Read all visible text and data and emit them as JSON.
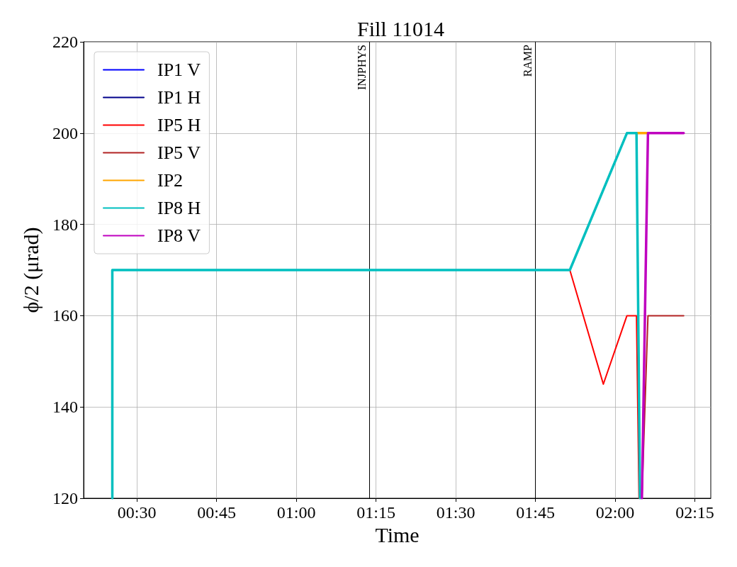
{
  "chart_data": {
    "type": "line",
    "title": "Fill 11014",
    "xlabel": "Time",
    "ylabel": "ϕ/2 (μrad)",
    "xlim": [
      0.333,
      2.3
    ],
    "xticks": [
      {
        "value": 0.5,
        "label": "00:30"
      },
      {
        "value": 0.75,
        "label": "00:45"
      },
      {
        "value": 1.0,
        "label": "01:00"
      },
      {
        "value": 1.25,
        "label": "01:15"
      },
      {
        "value": 1.5,
        "label": "01:30"
      },
      {
        "value": 1.75,
        "label": "01:45"
      },
      {
        "value": 2.0,
        "label": "02:00"
      },
      {
        "value": 2.25,
        "label": "02:15"
      }
    ],
    "ylim": [
      120,
      220
    ],
    "yticks": [
      120,
      140,
      160,
      180,
      200,
      220
    ],
    "grid": true,
    "legend": "top left",
    "marker": "none",
    "line_style": "solid",
    "ref_lines": [
      {
        "axis": "x",
        "value": 1.23,
        "label": "INJPHYS",
        "color": "#000000"
      },
      {
        "axis": "x",
        "value": 1.752,
        "label": "RAMP",
        "color": "#000000"
      }
    ],
    "series": [
      {
        "name": "IP1 V",
        "color": "#0000ff"
      },
      {
        "name": "IP1 H",
        "color": "#00008b"
      },
      {
        "name": "IP5 H",
        "color": "#ff0000",
        "x": [
          1.858,
          1.963,
          2.037,
          2.067,
          2.075
        ],
        "values": [
          170,
          145,
          160,
          160,
          120
        ]
      },
      {
        "name": "IP5 V",
        "color": "#b22222",
        "x": [
          2.084,
          2.103,
          2.215
        ],
        "values": [
          120,
          160,
          160
        ]
      },
      {
        "name": "IP2",
        "color": "#ffa500",
        "x": [
          2.067,
          2.103
        ],
        "values": [
          200,
          200
        ]
      },
      {
        "name": "IP8 H",
        "color": "#00bfbf",
        "x": [
          0.423,
          0.423,
          1.858,
          2.037,
          2.067,
          2.078
        ],
        "values": [
          120,
          170,
          170,
          200,
          200,
          120
        ]
      },
      {
        "name": "IP8 V",
        "color": "#bf00bf",
        "x": [
          2.084,
          2.103,
          2.215
        ],
        "values": [
          120,
          200,
          200
        ]
      }
    ]
  }
}
